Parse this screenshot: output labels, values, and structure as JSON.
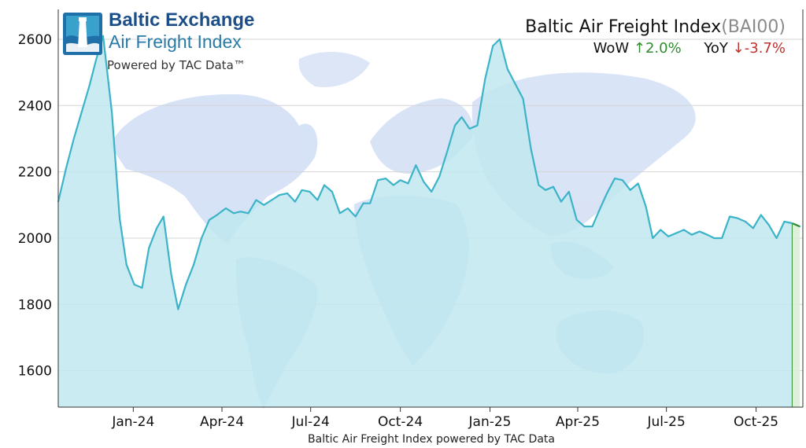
{
  "logo": {
    "line1": "Baltic Exchange",
    "line2": "Air Freight Index",
    "line3": "Powered by TAC Data™"
  },
  "header": {
    "title": "Baltic Air Freight Index",
    "code": "(BAI00)",
    "wow_label": "WoW",
    "wow_arrow": "↑",
    "wow_value": "2.0%",
    "yoy_label": "YoY",
    "yoy_arrow": "↓",
    "yoy_value": "-3.7%"
  },
  "colors": {
    "line": "#3bb3c8",
    "fill": "#bfe7ee",
    "up": "#2e8b2e",
    "down": "#c0302e",
    "map": "#a9c9ea"
  },
  "chart_data": {
    "type": "area",
    "caption": "Baltic Air Freight Index powered by TAC Data",
    "ylim": [
      1490,
      2690
    ],
    "xlim": [
      "2023-10-16",
      "2025-11-18"
    ],
    "yticks": [
      1600,
      1800,
      2000,
      2200,
      2400,
      2600
    ],
    "xticks": [
      {
        "label": "Jan-24",
        "date": "2024-01-01"
      },
      {
        "label": "Apr-24",
        "date": "2024-04-01"
      },
      {
        "label": "Jul-24",
        "date": "2024-07-01"
      },
      {
        "label": "Oct-24",
        "date": "2024-10-01"
      },
      {
        "label": "Jan-25",
        "date": "2025-01-01"
      },
      {
        "label": "Apr-25",
        "date": "2025-04-01"
      },
      {
        "label": "Jul-25",
        "date": "2025-07-01"
      },
      {
        "label": "Oct-25",
        "date": "2025-10-01"
      }
    ],
    "grid": true,
    "series": [
      {
        "points": [
          [
            "2023-10-16",
            2110
          ],
          [
            "2023-10-24",
            2210
          ],
          [
            "2023-11-01",
            2300
          ],
          [
            "2023-11-09",
            2380
          ],
          [
            "2023-11-17",
            2460
          ],
          [
            "2023-11-24",
            2540
          ],
          [
            "2023-12-01",
            2610
          ],
          [
            "2023-12-10",
            2380
          ],
          [
            "2023-12-18",
            2060
          ],
          [
            "2023-12-25",
            1920
          ],
          [
            "2024-01-02",
            1860
          ],
          [
            "2024-01-10",
            1850
          ],
          [
            "2024-01-17",
            1970
          ],
          [
            "2024-01-25",
            2030
          ],
          [
            "2024-02-01",
            2065
          ],
          [
            "2024-02-09",
            1890
          ],
          [
            "2024-02-16",
            1785
          ],
          [
            "2024-02-24",
            1860
          ],
          [
            "2024-03-03",
            1920
          ],
          [
            "2024-03-11",
            2000
          ],
          [
            "2024-03-19",
            2055
          ],
          [
            "2024-03-27",
            2070
          ],
          [
            "2024-04-05",
            2090
          ],
          [
            "2024-04-13",
            2075
          ],
          [
            "2024-04-20",
            2080
          ],
          [
            "2024-04-28",
            2075
          ],
          [
            "2024-05-06",
            2115
          ],
          [
            "2024-05-14",
            2100
          ],
          [
            "2024-05-22",
            2115
          ],
          [
            "2024-05-30",
            2130
          ],
          [
            "2024-06-07",
            2135
          ],
          [
            "2024-06-15",
            2110
          ],
          [
            "2024-06-22",
            2145
          ],
          [
            "2024-06-30",
            2140
          ],
          [
            "2024-07-08",
            2115
          ],
          [
            "2024-07-15",
            2160
          ],
          [
            "2024-07-23",
            2140
          ],
          [
            "2024-07-31",
            2075
          ],
          [
            "2024-08-08",
            2090
          ],
          [
            "2024-08-16",
            2065
          ],
          [
            "2024-08-24",
            2105
          ],
          [
            "2024-08-31",
            2105
          ],
          [
            "2024-09-08",
            2175
          ],
          [
            "2024-09-16",
            2180
          ],
          [
            "2024-09-24",
            2160
          ],
          [
            "2024-10-01",
            2175
          ],
          [
            "2024-10-09",
            2165
          ],
          [
            "2024-10-17",
            2220
          ],
          [
            "2024-10-25",
            2170
          ],
          [
            "2024-11-02",
            2140
          ],
          [
            "2024-11-10",
            2185
          ],
          [
            "2024-11-18",
            2260
          ],
          [
            "2024-11-26",
            2340
          ],
          [
            "2024-12-03",
            2365
          ],
          [
            "2024-12-11",
            2330
          ],
          [
            "2024-12-19",
            2340
          ],
          [
            "2024-12-27",
            2480
          ],
          [
            "2025-01-04",
            2580
          ],
          [
            "2025-01-11",
            2600
          ],
          [
            "2025-01-19",
            2510
          ],
          [
            "2025-01-27",
            2465
          ],
          [
            "2025-02-04",
            2420
          ],
          [
            "2025-02-12",
            2270
          ],
          [
            "2025-02-20",
            2160
          ],
          [
            "2025-02-27",
            2145
          ],
          [
            "2025-03-07",
            2155
          ],
          [
            "2025-03-15",
            2110
          ],
          [
            "2025-03-23",
            2140
          ],
          [
            "2025-03-31",
            2055
          ],
          [
            "2025-04-08",
            2035
          ],
          [
            "2025-04-16",
            2035
          ],
          [
            "2025-04-24",
            2090
          ],
          [
            "2025-05-01",
            2135
          ],
          [
            "2025-05-09",
            2180
          ],
          [
            "2025-05-17",
            2175
          ],
          [
            "2025-05-25",
            2145
          ],
          [
            "2025-06-02",
            2165
          ],
          [
            "2025-06-10",
            2095
          ],
          [
            "2025-06-17",
            2000
          ],
          [
            "2025-06-25",
            2025
          ],
          [
            "2025-07-03",
            2005
          ],
          [
            "2025-07-11",
            2015
          ],
          [
            "2025-07-19",
            2025
          ],
          [
            "2025-07-27",
            2010
          ],
          [
            "2025-08-04",
            2020
          ],
          [
            "2025-08-12",
            2010
          ],
          [
            "2025-08-19",
            2000
          ],
          [
            "2025-08-27",
            2000
          ],
          [
            "2025-09-04",
            2065
          ],
          [
            "2025-09-12",
            2060
          ],
          [
            "2025-09-20",
            2050
          ],
          [
            "2025-09-28",
            2030
          ],
          [
            "2025-10-06",
            2070
          ],
          [
            "2025-10-14",
            2040
          ],
          [
            "2025-10-22",
            2000
          ],
          [
            "2025-10-30",
            2050
          ],
          [
            "2025-11-07",
            2045
          ],
          [
            "2025-11-15",
            2035
          ]
        ]
      }
    ]
  }
}
